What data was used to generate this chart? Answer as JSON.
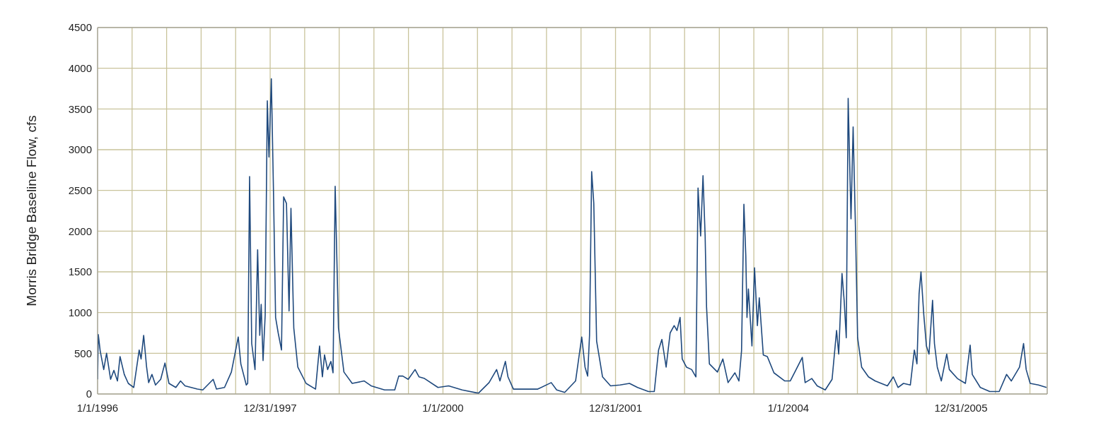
{
  "chart_data": {
    "type": "line",
    "ylabel": "Morris Bridge Baseline Flow, cfs",
    "grid": true,
    "xlim": [
      "1996-01-01",
      "2006-12-31"
    ],
    "xticks": [
      {
        "value": "1996-01-01",
        "label": "1/1/1996"
      },
      {
        "value": "1996-05-26",
        "label": null
      },
      {
        "value": "1996-10-19",
        "label": null
      },
      {
        "value": "1997-03-14",
        "label": null
      },
      {
        "value": "1997-08-07",
        "label": null
      },
      {
        "value": "1997-12-31",
        "label": "12/31/1997"
      },
      {
        "value": "1998-05-26",
        "label": null
      },
      {
        "value": "1998-10-19",
        "label": null
      },
      {
        "value": "1999-03-15",
        "label": null
      },
      {
        "value": "1999-08-08",
        "label": null
      },
      {
        "value": "2000-01-01",
        "label": "1/1/2000"
      },
      {
        "value": "2000-05-26",
        "label": null
      },
      {
        "value": "2000-10-19",
        "label": null
      },
      {
        "value": "2001-03-14",
        "label": null
      },
      {
        "value": "2001-08-07",
        "label": null
      },
      {
        "value": "2001-12-31",
        "label": "12/31/2001"
      },
      {
        "value": "2002-05-26",
        "label": null
      },
      {
        "value": "2002-10-19",
        "label": null
      },
      {
        "value": "2003-03-15",
        "label": null
      },
      {
        "value": "2003-08-08",
        "label": null
      },
      {
        "value": "2004-01-01",
        "label": "1/1/2004"
      },
      {
        "value": "2004-05-26",
        "label": null
      },
      {
        "value": "2004-10-19",
        "label": null
      },
      {
        "value": "2005-03-14",
        "label": null
      },
      {
        "value": "2005-08-07",
        "label": null
      },
      {
        "value": "2005-12-31",
        "label": "12/31/2005"
      },
      {
        "value": "2006-05-26",
        "label": null
      },
      {
        "value": "2006-10-19",
        "label": null
      }
    ],
    "ylim": [
      0,
      4500
    ],
    "yticks": [
      0,
      500,
      1000,
      1500,
      2000,
      2500,
      3000,
      3500,
      4000,
      4500
    ],
    "x": [
      "1996-01-01",
      "1996-01-04",
      "1996-01-12",
      "1996-01-27",
      "1996-02-08",
      "1996-02-25",
      "1996-03-10",
      "1996-03-25",
      "1996-04-05",
      "1996-04-23",
      "1996-05-10",
      "1996-06-02",
      "1996-06-25",
      "1996-07-03",
      "1996-07-14",
      "1996-07-26",
      "1996-08-04",
      "1996-08-18",
      "1996-09-02",
      "1996-09-24",
      "1996-10-12",
      "1996-10-29",
      "1996-11-27",
      "1996-12-17",
      "1997-01-05",
      "1997-02-26",
      "1997-03-21",
      "1997-05-04",
      "1997-05-18",
      "1997-06-21",
      "1997-07-20",
      "1997-08-18",
      "1997-08-29",
      "1997-09-21",
      "1997-09-27",
      "1997-10-05",
      "1997-10-14",
      "1997-10-28",
      "1997-11-08",
      "1997-11-17",
      "1997-11-23",
      "1997-12-01",
      "1997-12-10",
      "1997-12-19",
      "1997-12-26",
      "1998-01-05",
      "1998-01-14",
      "1998-01-23",
      "1998-02-03",
      "1998-02-17",
      "1998-02-26",
      "1998-03-10",
      "1998-03-21",
      "1998-03-29",
      "1998-04-10",
      "1998-04-27",
      "1998-06-01",
      "1998-07-11",
      "1998-07-28",
      "1998-08-09",
      "1998-08-18",
      "1998-08-31",
      "1998-09-14",
      "1998-09-23",
      "1998-10-02",
      "1998-10-16",
      "1998-11-08",
      "1998-12-13",
      "1999-02-02",
      "1999-03-03",
      "1999-04-29",
      "1999-05-28",
      "1999-06-11",
      "1999-06-28",
      "1999-07-15",
      "1999-08-07",
      "1999-09-05",
      "1999-09-22",
      "1999-10-15",
      "1999-12-11",
      "2000-01-25",
      "2000-03-22",
      "2000-05-30",
      "2000-07-14",
      "2000-08-15",
      "2000-08-29",
      "2000-09-21",
      "2000-10-02",
      "2000-10-25",
      "2001-02-05",
      "2001-04-03",
      "2001-04-26",
      "2001-05-30",
      "2001-07-15",
      "2001-08-10",
      "2001-08-24",
      "2001-09-04",
      "2001-09-12",
      "2001-09-21",
      "2001-09-30",
      "2001-10-12",
      "2001-11-06",
      "2001-12-10",
      "2002-01-19",
      "2002-02-28",
      "2002-04-03",
      "2002-05-19",
      "2002-06-13",
      "2002-07-01",
      "2002-07-15",
      "2002-08-02",
      "2002-08-19",
      "2002-09-05",
      "2002-09-17",
      "2002-09-30",
      "2002-10-09",
      "2002-10-27",
      "2002-11-18",
      "2002-12-06",
      "2002-12-15",
      "2002-12-26",
      "2003-01-05",
      "2003-01-14",
      "2003-01-20",
      "2003-02-01",
      "2003-03-07",
      "2003-03-30",
      "2003-04-21",
      "2003-05-20",
      "2003-06-06",
      "2003-06-17",
      "2003-06-27",
      "2003-07-05",
      "2003-07-10",
      "2003-07-16",
      "2003-07-31",
      "2003-08-11",
      "2003-08-23",
      "2003-08-31",
      "2003-09-17",
      "2003-10-04",
      "2003-11-01",
      "2003-12-17",
      "2004-01-09",
      "2004-02-01",
      "2004-02-29",
      "2004-03-12",
      "2004-04-09",
      "2004-05-02",
      "2004-06-05",
      "2004-07-04",
      "2004-07-23",
      "2004-08-01",
      "2004-08-15",
      "2004-08-24",
      "2004-09-02",
      "2004-09-10",
      "2004-09-22",
      "2004-10-01",
      "2004-10-11",
      "2004-10-20",
      "2004-11-06",
      "2004-12-05",
      "2005-01-02",
      "2005-02-23",
      "2005-03-20",
      "2005-04-09",
      "2005-05-02",
      "2005-05-31",
      "2005-06-17",
      "2005-06-28",
      "2005-07-07",
      "2005-07-15",
      "2005-07-27",
      "2005-08-07",
      "2005-08-18",
      "2005-09-02",
      "2005-09-10",
      "2005-09-22",
      "2005-10-09",
      "2005-11-01",
      "2005-11-12",
      "2005-12-16",
      "2006-01-19",
      "2006-02-08",
      "2006-02-17",
      "2006-03-23",
      "2006-05-02",
      "2006-06-11",
      "2006-07-12",
      "2006-08-01",
      "2006-09-05",
      "2006-09-22",
      "2006-10-03",
      "2006-10-20",
      "2006-11-24",
      "2006-12-28"
    ],
    "series": [
      {
        "color": "#1f497d",
        "values": [
          180,
          730,
          530,
          300,
          500,
          180,
          290,
          160,
          460,
          240,
          130,
          80,
          540,
          430,
          720,
          340,
          140,
          240,
          110,
          180,
          380,
          130,
          80,
          160,
          100,
          60,
          50,
          180,
          60,
          80,
          270,
          700,
          370,
          110,
          130,
          2670,
          620,
          300,
          1770,
          720,
          1100,
          410,
          970,
          3600,
          2910,
          3870,
          2500,
          940,
          750,
          540,
          2420,
          2340,
          1020,
          2280,
          810,
          330,
          130,
          60,
          590,
          210,
          480,
          300,
          400,
          260,
          2550,
          810,
          270,
          130,
          160,
          100,
          50,
          50,
          50,
          220,
          220,
          180,
          300,
          210,
          190,
          80,
          100,
          50,
          10,
          140,
          300,
          160,
          400,
          210,
          60,
          60,
          140,
          50,
          20,
          160,
          700,
          330,
          220,
          720,
          2730,
          2340,
          650,
          210,
          100,
          110,
          130,
          80,
          30,
          30,
          540,
          670,
          330,
          750,
          840,
          780,
          940,
          430,
          330,
          300,
          210,
          2530,
          1940,
          2680,
          1940,
          1070,
          370,
          270,
          430,
          140,
          260,
          160,
          530,
          2330,
          1700,
          940,
          1290,
          590,
          1550,
          840,
          1180,
          480,
          460,
          260,
          160,
          160,
          290,
          450,
          140,
          190,
          100,
          50,
          180,
          780,
          490,
          1480,
          1150,
          690,
          3630,
          2150,
          3280,
          2020,
          690,
          330,
          210,
          160,
          100,
          210,
          80,
          130,
          110,
          540,
          370,
          1230,
          1500,
          970,
          590,
          490,
          1150,
          620,
          330,
          160,
          490,
          300,
          190,
          130,
          600,
          240,
          80,
          30,
          30,
          240,
          160,
          330,
          620,
          300,
          130,
          110,
          80
        ]
      }
    ]
  }
}
